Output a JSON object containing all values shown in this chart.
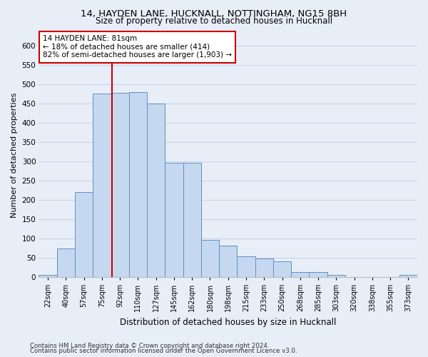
{
  "title_line1": "14, HAYDEN LANE, HUCKNALL, NOTTINGHAM, NG15 8BH",
  "title_line2": "Size of property relative to detached houses in Hucknall",
  "xlabel": "Distribution of detached houses by size in Hucknall",
  "ylabel": "Number of detached properties",
  "footer_line1": "Contains HM Land Registry data © Crown copyright and database right 2024.",
  "footer_line2": "Contains public sector information licensed under the Open Government Licence v3.0.",
  "categories": [
    "22sqm",
    "40sqm",
    "57sqm",
    "75sqm",
    "92sqm",
    "110sqm",
    "127sqm",
    "145sqm",
    "162sqm",
    "180sqm",
    "198sqm",
    "215sqm",
    "233sqm",
    "250sqm",
    "268sqm",
    "285sqm",
    "303sqm",
    "320sqm",
    "338sqm",
    "355sqm",
    "373sqm"
  ],
  "values": [
    5,
    73,
    220,
    476,
    477,
    480,
    450,
    295,
    295,
    96,
    81,
    54,
    47,
    41,
    13,
    12,
    5,
    0,
    0,
    0,
    5
  ],
  "bar_color": "#c5d8f0",
  "bar_edge_color": "#6090c0",
  "grid_color": "#c8d4e8",
  "bg_color": "#e8eef8",
  "vline_color": "#cc0000",
  "annotation_text": "14 HAYDEN LANE: 81sqm\n← 18% of detached houses are smaller (414)\n82% of semi-detached houses are larger (1,903) →",
  "annotation_box_color": "#ffffff",
  "annotation_box_edge": "#cc0000",
  "ylim": [
    0,
    630
  ],
  "yticks": [
    0,
    50,
    100,
    150,
    200,
    250,
    300,
    350,
    400,
    450,
    500,
    550,
    600
  ],
  "vline_pos": 3.55
}
